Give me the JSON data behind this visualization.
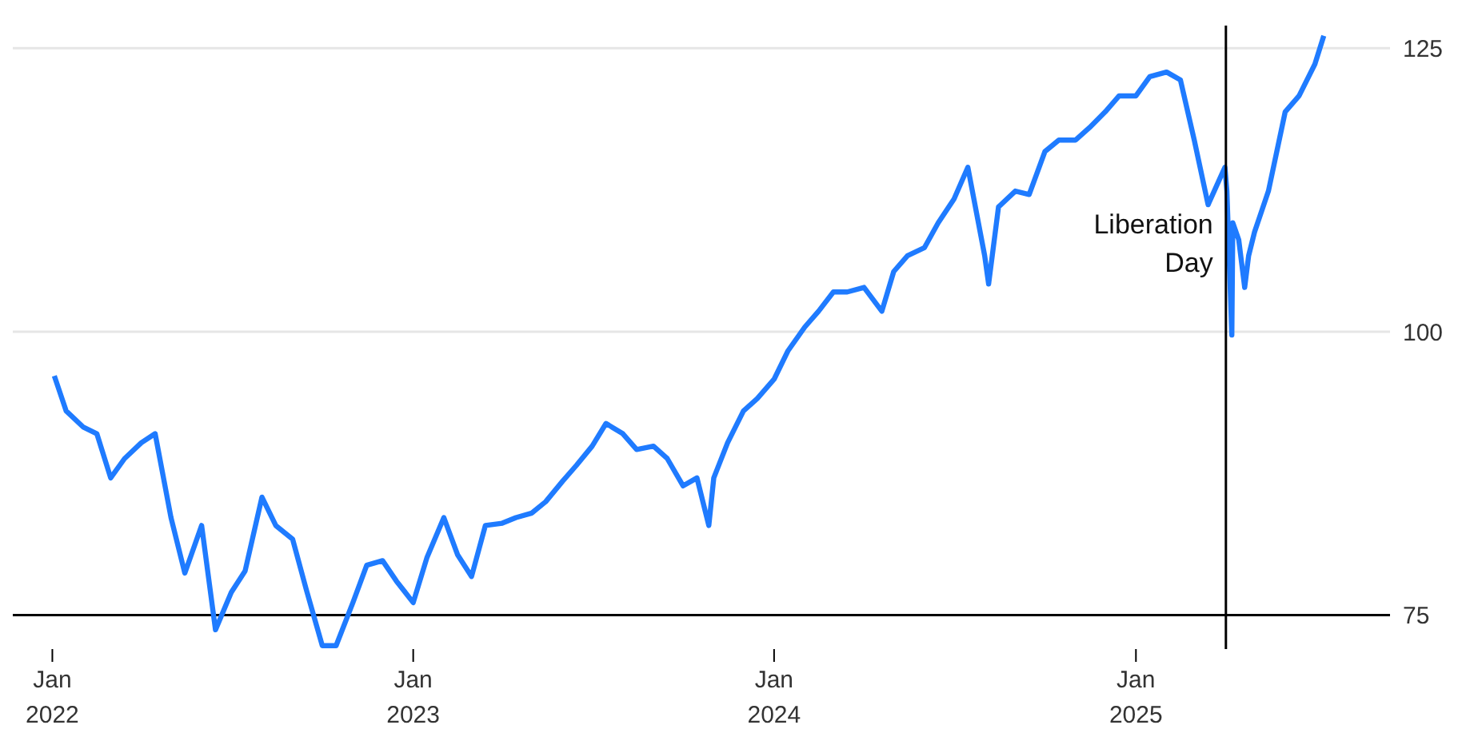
{
  "chart_data": {
    "type": "line",
    "x": [
      "2022-01-03",
      "2022-01-15",
      "2022-02-01",
      "2022-02-15",
      "2022-03-01",
      "2022-03-15",
      "2022-04-01",
      "2022-04-15",
      "2022-05-01",
      "2022-05-15",
      "2022-06-01",
      "2022-06-15",
      "2022-07-01",
      "2022-07-15",
      "2022-08-01",
      "2022-08-15",
      "2022-09-01",
      "2022-09-15",
      "2022-10-01",
      "2022-10-15",
      "2022-11-01",
      "2022-11-15",
      "2022-12-01",
      "2022-12-15",
      "2023-01-01",
      "2023-01-15",
      "2023-02-01",
      "2023-02-15",
      "2023-03-01",
      "2023-03-15",
      "2023-04-01",
      "2023-04-15",
      "2023-05-01",
      "2023-05-15",
      "2023-06-01",
      "2023-06-15",
      "2023-07-01",
      "2023-07-15",
      "2023-08-01",
      "2023-08-15",
      "2023-09-01",
      "2023-09-15",
      "2023-10-01",
      "2023-10-15",
      "2023-10-27",
      "2023-11-01",
      "2023-11-15",
      "2023-12-01",
      "2023-12-15",
      "2024-01-01",
      "2024-01-15",
      "2024-02-01",
      "2024-02-15",
      "2024-03-01",
      "2024-03-15",
      "2024-04-01",
      "2024-04-19",
      "2024-05-01",
      "2024-05-15",
      "2024-06-01",
      "2024-06-15",
      "2024-07-01",
      "2024-07-15",
      "2024-08-01",
      "2024-08-05",
      "2024-08-15",
      "2024-09-01",
      "2024-09-15",
      "2024-10-01",
      "2024-10-15",
      "2024-11-01",
      "2024-11-15",
      "2024-12-01",
      "2024-12-15",
      "2025-01-01",
      "2025-01-15",
      "2025-02-01",
      "2025-02-15",
      "2025-03-01",
      "2025-03-15",
      "2025-04-01",
      "2025-04-03",
      "2025-04-08",
      "2025-04-09",
      "2025-04-15",
      "2025-04-21",
      "2025-04-25",
      "2025-05-01",
      "2025-05-15",
      "2025-06-01",
      "2025-06-15",
      "2025-07-01",
      "2025-07-10"
    ],
    "series": [
      {
        "color": "#1f7bff",
        "values": [
          96.1,
          93.0,
          91.6,
          91.0,
          87.1,
          88.8,
          90.2,
          91.0,
          83.6,
          78.7,
          82.9,
          73.7,
          77.0,
          78.9,
          85.4,
          82.9,
          81.7,
          77.2,
          72.3,
          72.3,
          76.1,
          79.4,
          79.8,
          78.0,
          76.1,
          80.1,
          83.6,
          80.3,
          78.4,
          82.9,
          83.1,
          83.6,
          84.0,
          85.0,
          86.8,
          88.2,
          89.9,
          91.9,
          91.0,
          89.6,
          89.9,
          88.8,
          86.4,
          87.1,
          82.9,
          87.1,
          90.2,
          93.0,
          94.1,
          95.8,
          98.3,
          100.4,
          101.8,
          103.5,
          103.5,
          103.9,
          101.8,
          105.3,
          106.7,
          107.4,
          109.6,
          111.7,
          114.5,
          106.7,
          104.2,
          111.0,
          112.4,
          112.1,
          115.9,
          116.9,
          116.9,
          118.0,
          119.4,
          120.8,
          120.8,
          122.5,
          122.9,
          122.2,
          116.9,
          111.2,
          114.5,
          112.4,
          99.7,
          109.6,
          108.1,
          103.9,
          106.7,
          108.8,
          112.4,
          119.4,
          120.8,
          123.6,
          126.1
        ]
      }
    ],
    "xlim": [
      "2021-11-22",
      "2025-09-15"
    ],
    "xticks": [
      {
        "value": "2022-01-01",
        "label": "Jan 2022"
      },
      {
        "value": "2023-01-01",
        "label": "Jan 2023"
      },
      {
        "value": "2024-01-01",
        "label": "Jan 2024"
      },
      {
        "value": "2025-01-01",
        "label": "Jan 2025"
      }
    ],
    "ylim": [
      72,
      127
    ],
    "yticks": [
      75,
      100,
      125
    ],
    "grid": "y",
    "legend": false,
    "marker": "none",
    "line_style": "solid",
    "ref_lines": [
      {
        "axis": "x",
        "value": "2025-04-02",
        "label": "Liberation Day",
        "color": "#000000"
      }
    ]
  }
}
